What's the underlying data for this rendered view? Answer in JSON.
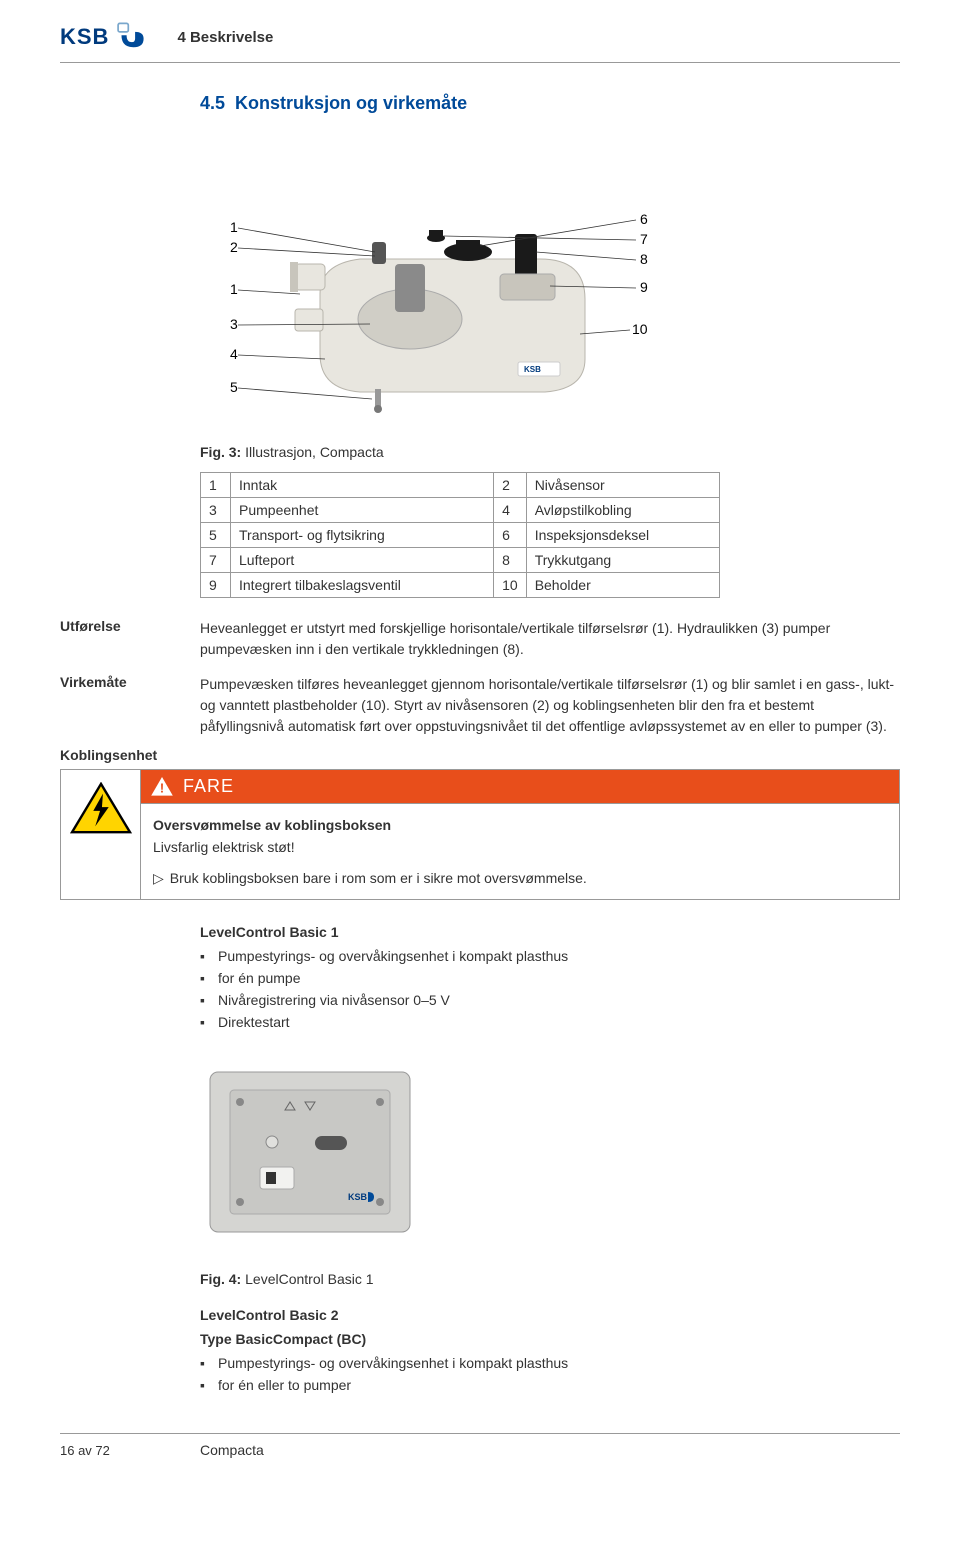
{
  "header": {
    "logo_text": "KSB",
    "chapter": "4 Beskrivelse"
  },
  "section": {
    "number": "4.5",
    "title": "Konstruksjon og virkemåte"
  },
  "diagram": {
    "left_labels": [
      "1",
      "2",
      "1",
      "3",
      "4",
      "5"
    ],
    "right_labels": [
      "6",
      "7",
      "8",
      "9",
      "10"
    ],
    "caption_prefix": "Fig. 3:",
    "caption_text": "Illustrasjon, Compacta",
    "body_color": "#e8e6df",
    "dark_color": "#333333",
    "mid_gray": "#8a8a8a",
    "line_color": "#333333"
  },
  "parts": {
    "rows": [
      [
        "1",
        "Inntak",
        "2",
        "Nivåsensor"
      ],
      [
        "3",
        "Pumpeenhet",
        "4",
        "Avløpstilkobling"
      ],
      [
        "5",
        "Transport- og flytsikring",
        "6",
        "Inspeksjonsdeksel"
      ],
      [
        "7",
        "Lufteport",
        "8",
        "Trykkutgang"
      ],
      [
        "9",
        "Integrert tilbakeslagsventil",
        "10",
        "Beholder"
      ]
    ]
  },
  "defs": {
    "utforelse": {
      "label": "Utførelse",
      "text": "Heveanlegget er utstyrt med forskjellige horisontale/vertikale tilførselsrør (1). Hydraulikken (3) pumper pumpevæsken inn i den vertikale trykkledningen (8)."
    },
    "virkemate": {
      "label": "Virkemåte",
      "text": "Pumpevæsken tilføres heveanlegget gjennom horisontale/vertikale tilførselsrør (1) og blir samlet i en gass-, lukt- og vanntett plastbeholder (10). Styrt av nivåsensoren (2) og koblingsenheten blir den fra et bestemt påfyllingsnivå automatisk ført over oppstuvingsnivået til det offentlige avløpssystemet av en eller to pumper (3)."
    },
    "koblingsenhet": {
      "label": "Koblingsenhet"
    }
  },
  "hazard": {
    "banner": "FARE",
    "banner_bg": "#e84e1b",
    "title": "Oversvømmelse av koblingsboksen",
    "subtitle": "Livsfarlig elektrisk støt!",
    "action": "Bruk koblingsboksen bare i rom som er i sikre mot oversvømmelse.",
    "tri_border": "#000000",
    "tri_fill": "#ffd400",
    "bolt_color": "#000000"
  },
  "levelcontrol1": {
    "heading": "LevelControl Basic 1",
    "bullets": [
      "Pumpestyrings- og overvåkingsenhet i kompakt plasthus",
      "for én pumpe",
      "Nivåregistrering via nivåsensor 0–5 V",
      "Direktestart"
    ],
    "caption_prefix": "Fig. 4:",
    "caption_text": "LevelControl Basic 1",
    "box_color": "#d5d5d2",
    "panel_color": "#c8c8c5"
  },
  "levelcontrol2": {
    "heading": "LevelControl Basic 2",
    "subheading": "Type BasicCompact (BC)",
    "bullets": [
      "Pumpestyrings- og overvåkingsenhet i kompakt plasthus",
      "for én eller to pumper"
    ]
  },
  "footer": {
    "page": "16 av 72",
    "doc": "Compacta"
  }
}
